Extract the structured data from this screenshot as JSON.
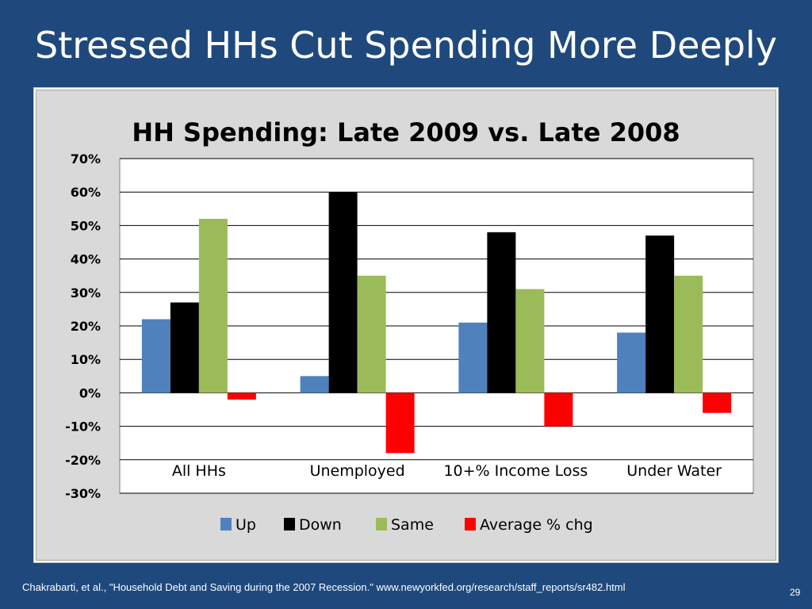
{
  "slide": {
    "title": "Stressed HHs Cut Spending More Deeply",
    "footer": "Chakrabarti, et al., \"Household Debt and Saving during the 2007 Recession.\" www.newyorkfed.org/research/staff_reports/sr482.html",
    "page_number": "29"
  },
  "chart_data": {
    "type": "bar",
    "title": "HH Spending: Late 2009 vs. Late 2008",
    "categories": [
      "All  HHs",
      "Unemployed",
      "10+% Income Loss",
      "Under Water"
    ],
    "series": [
      {
        "name": "Up",
        "color": "#4f81bd",
        "values": [
          22,
          5,
          21,
          18
        ]
      },
      {
        "name": "Down",
        "color": "#000000",
        "values": [
          27,
          60,
          48,
          47
        ]
      },
      {
        "name": "Same",
        "color": "#9bbb59",
        "values": [
          52,
          35,
          31,
          35
        ]
      },
      {
        "name": "Average % chg",
        "color": "#ff0000",
        "values": [
          -2,
          -18,
          -10,
          -6
        ]
      }
    ],
    "ylim": [
      -30,
      70
    ],
    "yticks": [
      70,
      60,
      50,
      40,
      30,
      20,
      10,
      0,
      -10,
      -20,
      -30
    ],
    "ytick_labels": [
      "70%",
      "60%",
      "50%",
      "40%",
      "30%",
      "20%",
      "10%",
      "0%",
      "-10%",
      "-20%",
      "-30%"
    ],
    "grid": true,
    "legend_position": "bottom"
  }
}
